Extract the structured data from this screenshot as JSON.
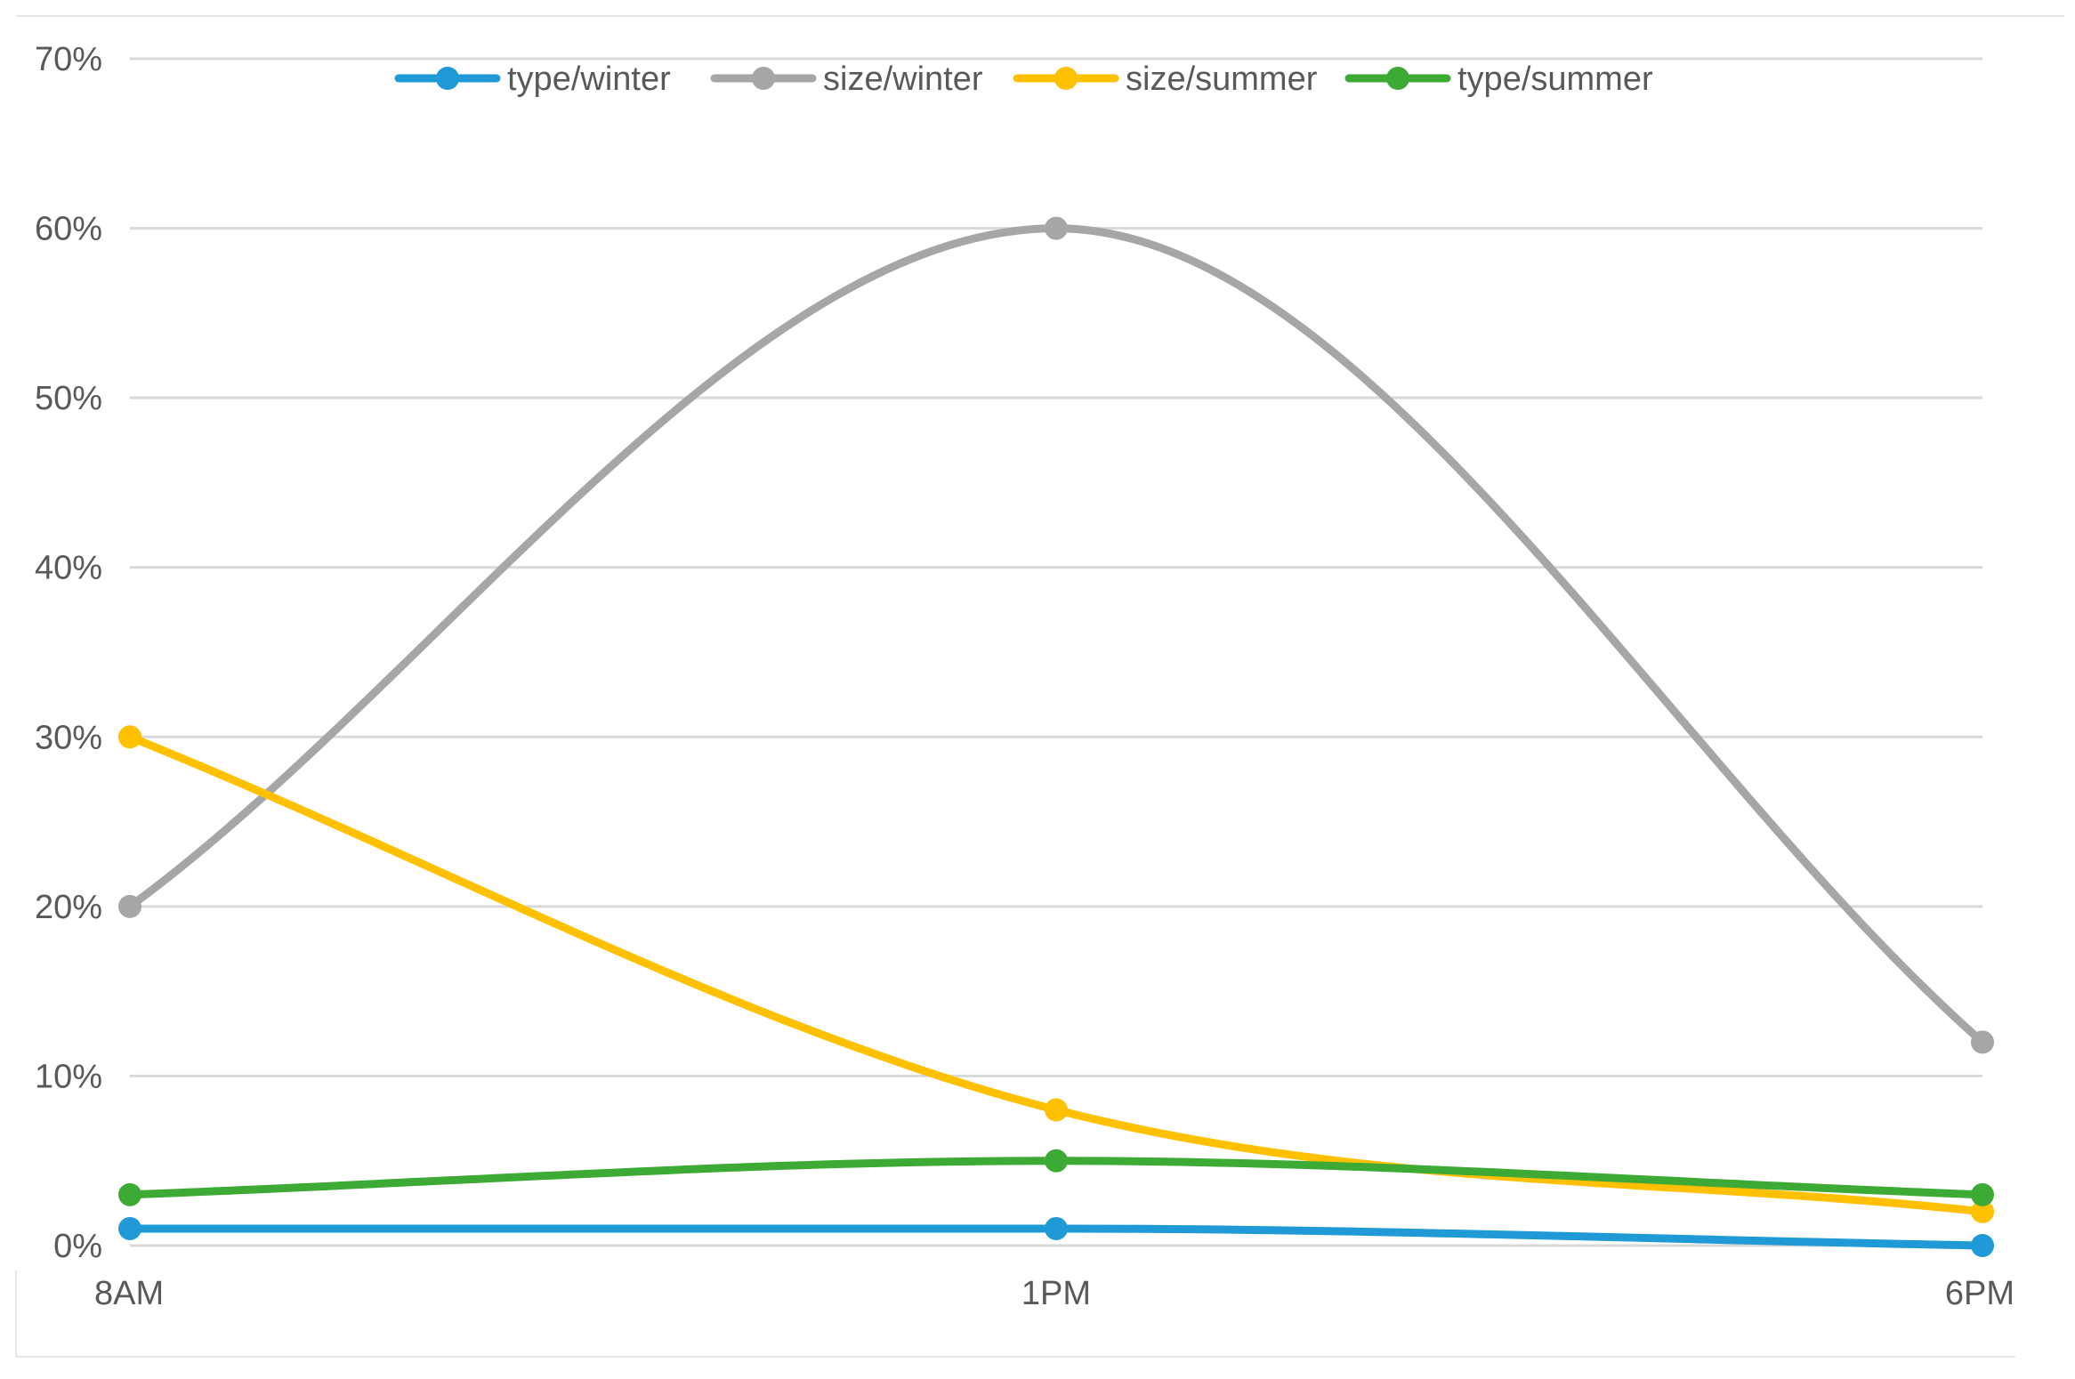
{
  "chart_data": {
    "type": "line",
    "smooth": true,
    "categories": [
      "8AM",
      "1PM",
      "6PM"
    ],
    "ylim": [
      0,
      70
    ],
    "yticks": [
      "0%",
      "10%",
      "20%",
      "30%",
      "40%",
      "50%",
      "60%",
      "70%"
    ],
    "ytick_values": [
      0,
      10,
      20,
      30,
      40,
      50,
      60,
      70
    ],
    "grid": true,
    "legend_position": "top",
    "series": [
      {
        "name": "type/winter",
        "color": "#1f9ad6",
        "values": [
          1,
          1,
          0
        ]
      },
      {
        "name": "size/winter",
        "color": "#a6a6a6",
        "values": [
          20,
          60,
          12
        ]
      },
      {
        "name": "size/summer",
        "color": "#ffc000",
        "values": [
          30,
          8,
          2
        ]
      },
      {
        "name": "type/summer",
        "color": "#3daa35",
        "values": [
          3,
          5,
          3
        ]
      }
    ]
  }
}
